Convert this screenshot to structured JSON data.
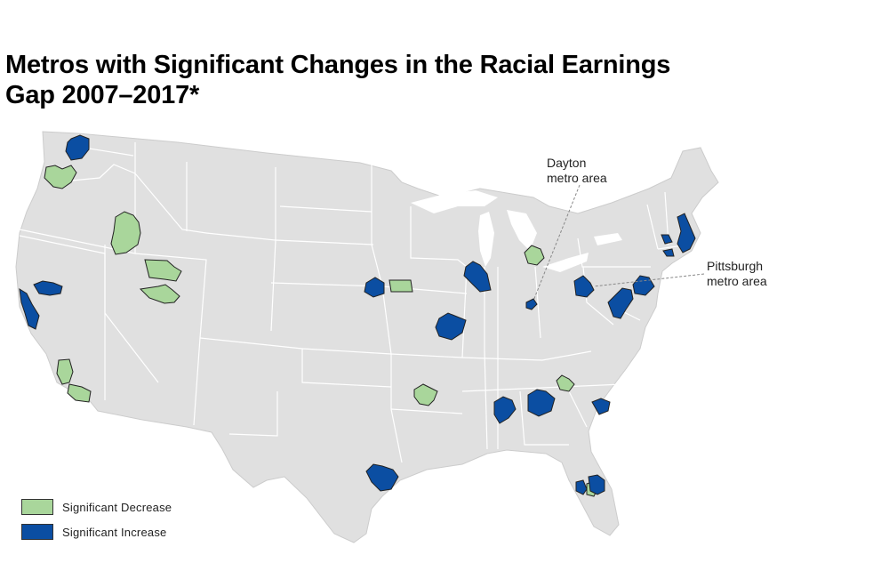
{
  "title_lines": [
    "Metros with Significant Changes in the Racial Earnings",
    "Gap 2007–2017*"
  ],
  "colors": {
    "land": "#e0e0e0",
    "state_border": "#ffffff",
    "decrease": "#a9d69b",
    "increase": "#0b4ea2",
    "metro_outline": "#222222"
  },
  "callouts": {
    "dayton": [
      "Dayton",
      "metro area"
    ],
    "pittsburgh": [
      "Pittsburgh",
      "metro area"
    ]
  },
  "legend": {
    "decrease_label": "Significant Decrease",
    "increase_label": "Significant Increase"
  },
  "metros": {
    "decrease": [
      "Portland OR",
      "Boise",
      "Salt Lake City",
      "Provo",
      "Bakersfield",
      "Los Angeles",
      "Omaha",
      "Little Rock",
      "Grand Rapids",
      "Greenville SC",
      "Tampa"
    ],
    "increase": [
      "Seattle",
      "Sacramento",
      "San Francisco Bay",
      "Des Moines",
      "St. Louis",
      "Chicago",
      "Dayton",
      "Pittsburgh",
      "Baltimore-Washington",
      "Philadelphia",
      "Boston",
      "Hartford",
      "Providence",
      "Birmingham",
      "Atlanta",
      "Columbia SC",
      "Houston",
      "Orlando",
      "Tampa Bay"
    ]
  }
}
